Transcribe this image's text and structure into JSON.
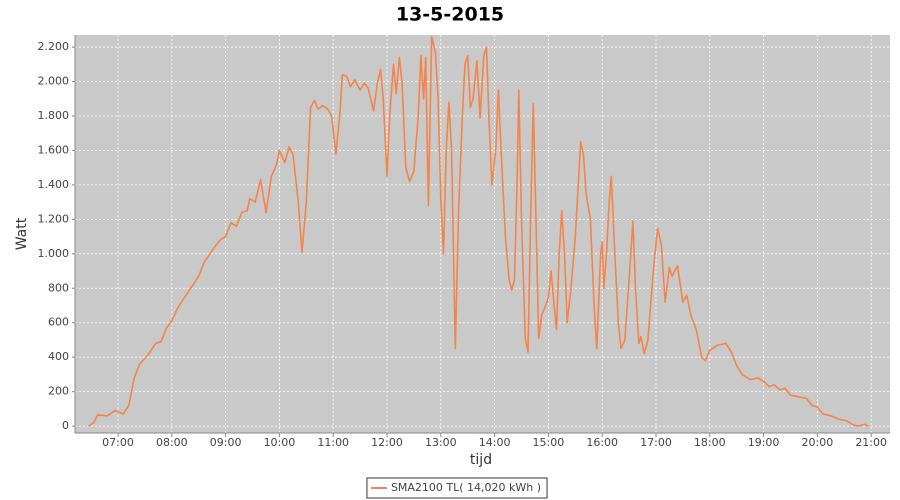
{
  "chart_data": {
    "type": "line",
    "title": "13-5-2015",
    "x_label": "tijd",
    "y_label": "Watt",
    "x": [
      6.45,
      6.55,
      6.62,
      6.8,
      6.95,
      7.1,
      7.2,
      7.3,
      7.4,
      7.55,
      7.7,
      7.8,
      7.9,
      8.0,
      8.1,
      8.2,
      8.35,
      8.5,
      8.6,
      8.75,
      8.9,
      9.0,
      9.1,
      9.2,
      9.3,
      9.4,
      9.45,
      9.55,
      9.65,
      9.75,
      9.85,
      9.95,
      10.0,
      10.1,
      10.18,
      10.25,
      10.35,
      10.42,
      10.5,
      10.58,
      10.65,
      10.72,
      10.8,
      10.9,
      10.97,
      11.05,
      11.12,
      11.17,
      11.25,
      11.32,
      11.4,
      11.5,
      11.58,
      11.65,
      11.75,
      11.82,
      11.88,
      11.93,
      12.0,
      12.05,
      12.12,
      12.17,
      12.23,
      12.28,
      12.35,
      12.42,
      12.5,
      12.58,
      12.63,
      12.68,
      12.72,
      12.77,
      12.83,
      12.9,
      12.95,
      13.0,
      13.05,
      13.1,
      13.15,
      13.2,
      13.27,
      13.33,
      13.4,
      13.45,
      13.5,
      13.55,
      13.6,
      13.67,
      13.73,
      13.8,
      13.85,
      13.9,
      13.95,
      14.02,
      14.07,
      14.12,
      14.2,
      14.27,
      14.32,
      14.37,
      14.42,
      14.45,
      14.5,
      14.57,
      14.62,
      14.67,
      14.72,
      14.77,
      14.82,
      14.88,
      14.95,
      15.0,
      15.05,
      15.1,
      15.15,
      15.2,
      15.25,
      15.3,
      15.35,
      15.42,
      15.5,
      15.6,
      15.65,
      15.7,
      15.78,
      15.85,
      15.9,
      15.97,
      16.0,
      16.03,
      16.08,
      16.13,
      16.17,
      16.22,
      16.3,
      16.35,
      16.42,
      16.5,
      16.57,
      16.62,
      16.68,
      16.72,
      16.78,
      16.85,
      16.95,
      17.03,
      17.1,
      17.17,
      17.25,
      17.3,
      17.4,
      17.5,
      17.57,
      17.65,
      17.75,
      17.85,
      17.92,
      18.0,
      18.15,
      18.3,
      18.4,
      18.5,
      18.6,
      18.75,
      18.9,
      19.0,
      19.1,
      19.2,
      19.3,
      19.4,
      19.5,
      19.65,
      19.8,
      19.9,
      20.0,
      20.1,
      20.25,
      20.4,
      20.55,
      20.65,
      20.75,
      20.88,
      20.95
    ],
    "series": [
      {
        "name": "SMA2100 TL( 14,020 kWh )",
        "color": "#f5844a",
        "values": [
          0,
          20,
          65,
          60,
          90,
          70,
          120,
          280,
          360,
          410,
          480,
          490,
          570,
          610,
          680,
          730,
          800,
          870,
          950,
          1020,
          1080,
          1100,
          1180,
          1160,
          1240,
          1250,
          1320,
          1300,
          1430,
          1240,
          1450,
          1520,
          1600,
          1530,
          1620,
          1580,
          1300,
          1010,
          1300,
          1850,
          1890,
          1840,
          1860,
          1840,
          1800,
          1580,
          1800,
          2040,
          2030,
          1970,
          2010,
          1950,
          1990,
          1960,
          1830,
          1990,
          2070,
          1900,
          1450,
          1800,
          2100,
          1930,
          2140,
          1990,
          1500,
          1420,
          1480,
          1800,
          2150,
          1900,
          2140,
          1280,
          2260,
          2170,
          1900,
          1320,
          1000,
          1600,
          1880,
          1600,
          450,
          1250,
          1800,
          2100,
          2150,
          1850,
          1900,
          2120,
          1790,
          2150,
          2200,
          1750,
          1400,
          1600,
          1950,
          1600,
          1100,
          850,
          790,
          850,
          1450,
          1950,
          1200,
          510,
          430,
          1200,
          1870,
          1200,
          510,
          650,
          700,
          750,
          900,
          720,
          560,
          1000,
          1250,
          1000,
          600,
          800,
          1100,
          1650,
          1580,
          1350,
          1200,
          700,
          450,
          1000,
          1070,
          800,
          1000,
          1300,
          1450,
          1100,
          600,
          450,
          500,
          850,
          1190,
          800,
          480,
          520,
          420,
          500,
          900,
          1150,
          1050,
          720,
          920,
          870,
          930,
          720,
          760,
          640,
          560,
          400,
          380,
          440,
          470,
          480,
          430,
          350,
          300,
          270,
          280,
          260,
          230,
          240,
          210,
          220,
          180,
          170,
          160,
          120,
          110,
          70,
          60,
          40,
          30,
          10,
          0,
          10,
          0
        ]
      }
    ],
    "xlim": [
      6.2,
      21.35
    ],
    "xticks": [
      {
        "value": 7,
        "label": "07:00"
      },
      {
        "value": 8,
        "label": "08:00"
      },
      {
        "value": 9,
        "label": "09:00"
      },
      {
        "value": 10,
        "label": "10:00"
      },
      {
        "value": 11,
        "label": "11:00"
      },
      {
        "value": 12,
        "label": "12:00"
      },
      {
        "value": 13,
        "label": "13:00"
      },
      {
        "value": 14,
        "label": "14:00"
      },
      {
        "value": 15,
        "label": "15:00"
      },
      {
        "value": 16,
        "label": "16:00"
      },
      {
        "value": 17,
        "label": "17:00"
      },
      {
        "value": 18,
        "label": "18:00"
      },
      {
        "value": 19,
        "label": "19:00"
      },
      {
        "value": 20,
        "label": "20:00"
      },
      {
        "value": 21,
        "label": "21:00"
      }
    ],
    "ylim": [
      -40,
      2270
    ],
    "yticks": [
      0,
      200,
      400,
      600,
      800,
      {
        "value": 1000,
        "label": "1.000"
      },
      {
        "value": 1200,
        "label": "1.200"
      },
      {
        "value": 1400,
        "label": "1.400"
      },
      {
        "value": 1600,
        "label": "1.600"
      },
      {
        "value": 1800,
        "label": "1.800"
      },
      {
        "value": 2000,
        "label": "2.000"
      },
      {
        "value": 2200,
        "label": "2.200"
      }
    ],
    "grid": true,
    "legend": "bottom"
  }
}
